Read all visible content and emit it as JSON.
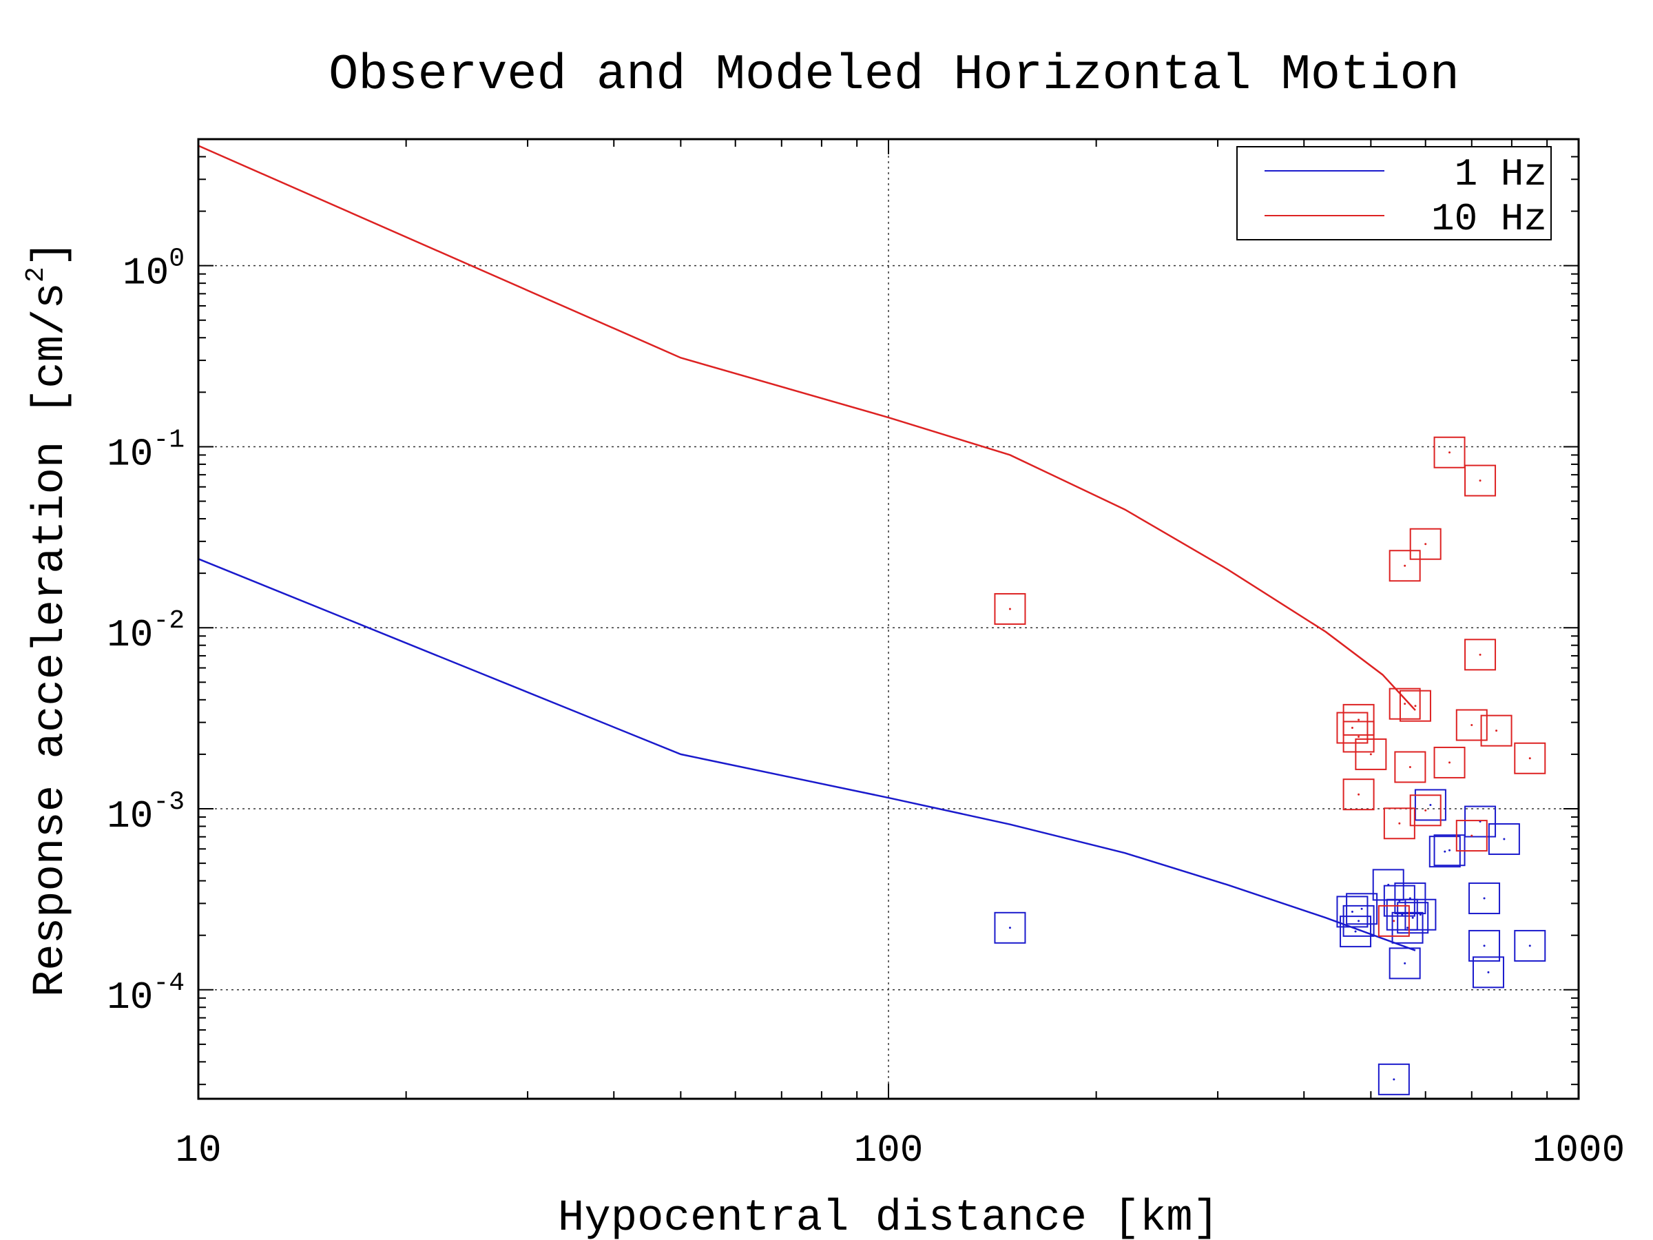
{
  "chart_data": {
    "type": "scatter",
    "title": "Observed and Modeled Horizontal Motion",
    "xlabel": "Hypocentral distance [km]",
    "ylabel": "Response acceleration [cm/s",
    "ylabel_superscript": "2",
    "ylabel_suffix": "]",
    "x_scale": "log",
    "y_scale": "log",
    "xlim": [
      10,
      1000
    ],
    "ylim": [
      2.5e-05,
      5.0
    ],
    "grid": true,
    "legend_position": "top-right",
    "x_ticks": [
      {
        "value": 10,
        "label": "10"
      },
      {
        "value": 100,
        "label": "100"
      },
      {
        "value": 1000,
        "label": "1000"
      }
    ],
    "y_ticks": [
      {
        "value": 1,
        "base": "10",
        "exp": "0"
      },
      {
        "value": 0.1,
        "base": "10",
        "exp": "-1"
      },
      {
        "value": 0.01,
        "base": "10",
        "exp": "-2"
      },
      {
        "value": 0.001,
        "base": "10",
        "exp": "-3"
      },
      {
        "value": 0.0001,
        "base": "10",
        "exp": "-4"
      }
    ],
    "series": [
      {
        "name": "1 Hz",
        "color": "#1a1acc",
        "model_line": {
          "x": [
            10,
            50,
            100,
            150,
            220,
            310,
            430,
            580
          ],
          "y": [
            0.024,
            0.002,
            0.00115,
            0.00082,
            0.00057,
            0.00038,
            0.00025,
            0.000165
          ]
        },
        "observed": {
          "x": [
            150,
            470,
            480,
            475,
            485,
            530,
            550,
            555,
            565,
            575,
            560,
            570,
            590,
            610,
            640,
            650,
            720,
            730,
            740,
            780,
            730,
            850,
            540
          ],
          "y": [
            0.00022,
            0.00027,
            0.00024,
            0.00021,
            0.00028,
            0.00038,
            0.00031,
            0.00026,
            0.00022,
            0.00025,
            0.00014,
            0.00032,
            0.00026,
            0.00105,
            0.00058,
            0.00059,
            0.00085,
            0.000175,
            0.000125,
            0.00068,
            0.00032,
            0.000175,
            3.2e-05
          ]
        }
      },
      {
        "name": "10 Hz",
        "color": "#dd2222",
        "model_line": {
          "x": [
            10,
            50,
            100,
            150,
            220,
            310,
            430,
            520,
            580
          ],
          "y": [
            4.6,
            0.31,
            0.145,
            0.09,
            0.045,
            0.021,
            0.0095,
            0.0055,
            0.0035
          ]
        },
        "observed": {
          "x": [
            150,
            650,
            720,
            600,
            560,
            720,
            560,
            580,
            470,
            480,
            480,
            500,
            570,
            650,
            700,
            760,
            850,
            480,
            600,
            550,
            700,
            540
          ],
          "y": [
            0.0127,
            0.093,
            0.065,
            0.029,
            0.022,
            0.0071,
            0.0038,
            0.0037,
            0.0028,
            0.0031,
            0.0025,
            0.002,
            0.0017,
            0.0018,
            0.0029,
            0.0027,
            0.0019,
            0.0012,
            0.00098,
            0.00083,
            0.00071,
            0.00024
          ]
        }
      }
    ]
  }
}
